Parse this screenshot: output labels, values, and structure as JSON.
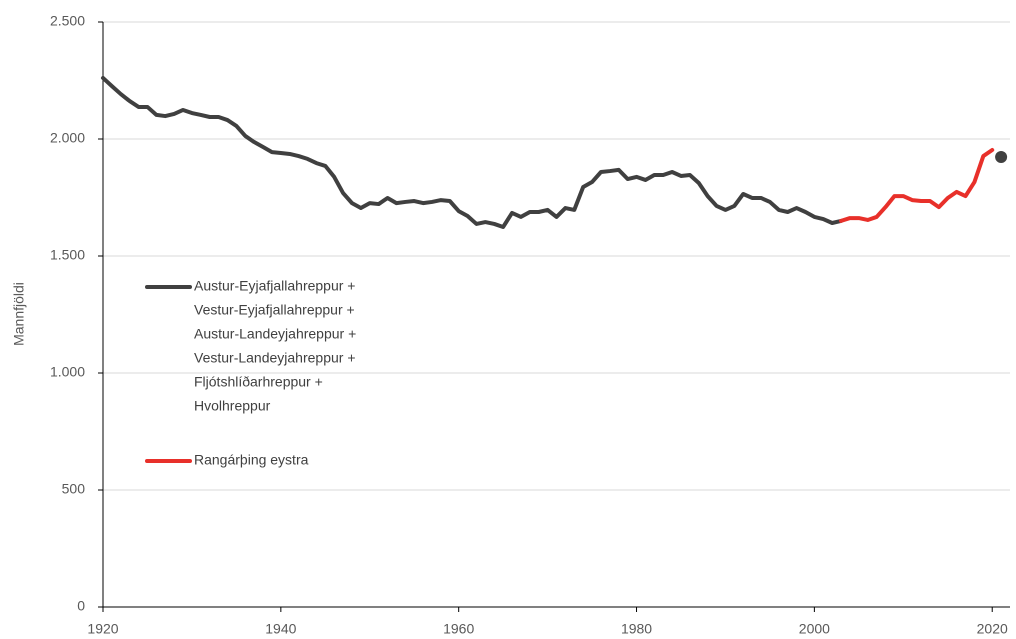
{
  "chart_data": {
    "type": "line",
    "y_label": "Mannfjöldi",
    "xlim": [
      1920,
      2022
    ],
    "xticks": [
      1920,
      1940,
      1960,
      1980,
      2000,
      2020
    ],
    "ylim": [
      0,
      2500
    ],
    "yticks": [
      0,
      500,
      {
        "value": 1000,
        "label": "1.000"
      },
      {
        "value": 1500,
        "label": "1.500"
      },
      {
        "value": 2000,
        "label": "2.000"
      },
      {
        "value": 2500,
        "label": "2.500"
      }
    ],
    "grid": true,
    "series": [
      {
        "name": [
          "Austur-Eyjafjallahreppur +",
          "Vestur-Eyjafjallahreppur +",
          "Austur-Landeyjahreppur +",
          "Vestur-Landeyjahreppur +",
          "Fljótshlíðarhreppur +",
          "Hvolhreppur"
        ],
        "color": "#404040",
        "x": [
          1920,
          1921,
          1922,
          1923,
          1924,
          1925,
          1926,
          1927,
          1928,
          1929,
          1930,
          1931,
          1932,
          1933,
          1934,
          1935,
          1936,
          1937,
          1938,
          1939,
          1940,
          1941,
          1942,
          1943,
          1944,
          1945,
          1946,
          1947,
          1948,
          1949,
          1950,
          1951,
          1952,
          1953,
          1954,
          1955,
          1956,
          1957,
          1958,
          1959,
          1960,
          1961,
          1962,
          1963,
          1964,
          1965,
          1966,
          1967,
          1968,
          1969,
          1970,
          1971,
          1972,
          1973,
          1974,
          1975,
          1976,
          1977,
          1978,
          1979,
          1980,
          1981,
          1982,
          1983,
          1984,
          1985,
          1986,
          1987,
          1988,
          1989,
          1990,
          1991,
          1992,
          1993,
          1994,
          1995,
          1996,
          1997,
          1998,
          1999,
          2000,
          2001,
          2002,
          2003
        ],
        "values": [
          2261,
          2226,
          2192,
          2162,
          2137,
          2137,
          2103,
          2098,
          2107,
          2124,
          2111,
          2103,
          2094,
          2094,
          2081,
          2056,
          2013,
          1987,
          1966,
          1944,
          1940,
          1936,
          1927,
          1915,
          1897,
          1885,
          1838,
          1769,
          1726,
          1705,
          1726,
          1722,
          1748,
          1726,
          1731,
          1735,
          1726,
          1731,
          1739,
          1735,
          1692,
          1671,
          1637,
          1645,
          1637,
          1624,
          1684,
          1667,
          1688,
          1688,
          1697,
          1667,
          1705,
          1697,
          1795,
          1816,
          1859,
          1863,
          1868,
          1829,
          1838,
          1825,
          1846,
          1846,
          1859,
          1842,
          1846,
          1812,
          1756,
          1714,
          1697,
          1714,
          1765,
          1748,
          1748,
          1731,
          1697,
          1688,
          1705,
          1688,
          1667,
          1658,
          1641,
          1650
        ]
      },
      {
        "name": [
          "Rangárþing eystra"
        ],
        "color": "#e8302a",
        "x": [
          2003,
          2004,
          2005,
          2006,
          2007,
          2008,
          2009,
          2010,
          2011,
          2012,
          2013,
          2014,
          2015,
          2016,
          2017,
          2018,
          2019,
          2020
        ],
        "values": [
          1650,
          1662,
          1662,
          1654,
          1667,
          1709,
          1756,
          1756,
          1739,
          1735,
          1735,
          1709,
          1748,
          1774,
          1756,
          1816,
          1927,
          1953
        ]
      }
    ],
    "marker": {
      "x": 2021,
      "value": 1923,
      "color": "#404040"
    }
  }
}
